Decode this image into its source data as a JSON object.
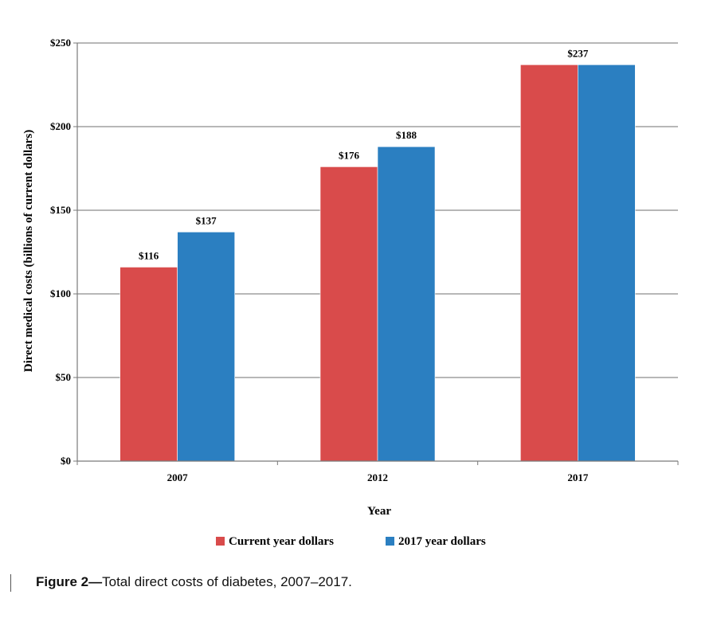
{
  "chart_data": {
    "type": "bar",
    "categories": [
      "2007",
      "2012",
      "2017"
    ],
    "series": [
      {
        "name": "Current year dollars",
        "values": [
          116,
          176,
          237
        ],
        "labels": [
          "$116",
          "$176",
          ""
        ],
        "color": "#d94b4b"
      },
      {
        "name": "2017 year dollars",
        "values": [
          137,
          188,
          237
        ],
        "labels": [
          "$137",
          "$188",
          ""
        ],
        "color": "#2b7fc1"
      }
    ],
    "combined_labels": [
      "",
      "",
      "$237"
    ],
    "xlabel": "Year",
    "ylabel": "Direct medical costs (billions of current dollars)",
    "ylim": [
      0,
      250
    ],
    "yticks": [
      0,
      50,
      100,
      150,
      200,
      250
    ],
    "ytick_labels": [
      "$0",
      "$50",
      "$100",
      "$150",
      "$200",
      "$250"
    ],
    "grid": true,
    "legend_position": "bottom"
  },
  "caption": {
    "label": "Figure 2—",
    "text": "Total direct costs of diabetes, 2007–2017."
  },
  "colors": {
    "grid": "#8c8c8c",
    "axis": "#7a7a7a"
  }
}
